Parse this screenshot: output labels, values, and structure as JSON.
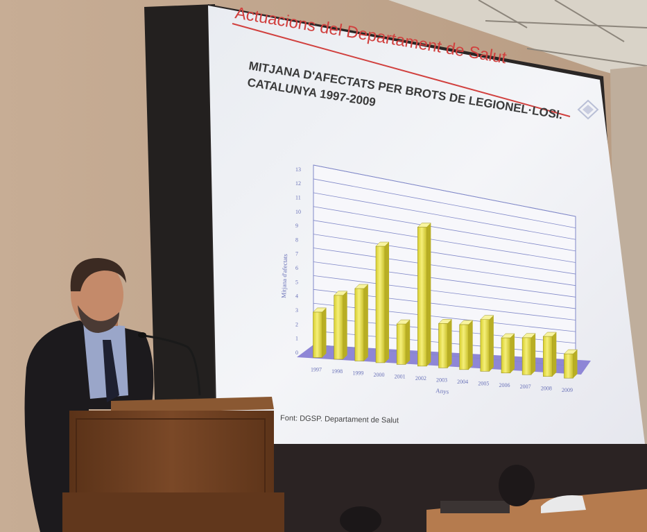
{
  "slide": {
    "header": "Actuacions del Departament de Salut",
    "title_line1": "MITJANA D'AFECTATS PER BROTS DE LEGIONEL·LOSI.",
    "title_line2": "CATALUNYA 1997-2009",
    "source": "Font: DGSP. Departament de Salut"
  },
  "colors": {
    "wall": "#c4ab92",
    "screen": "#f1f2f6",
    "accent_red": "#d1403e",
    "bar_yellow": "#e7e04a",
    "floor_purple": "#8e86d6",
    "podium_wood": "#6e3f22",
    "suit": "#1c1a1d"
  },
  "chart_data": {
    "type": "bar",
    "categories": [
      "1997",
      "1998",
      "1999",
      "2000",
      "2001",
      "2002",
      "2003",
      "2004",
      "2005",
      "2006",
      "2007",
      "2008",
      "2009"
    ],
    "values": [
      3.3,
      4.7,
      5.4,
      8.8,
      3.1,
      10.8,
      3.5,
      3.6,
      4.2,
      2.9,
      3.1,
      3.4,
      2.1
    ],
    "ylabel": "Mitjana d'afectats",
    "xlabel": "Anys",
    "yticks": [
      "0",
      "1",
      "2",
      "3",
      "4",
      "5",
      "6",
      "7",
      "8",
      "9",
      "10",
      "11",
      "12",
      "13"
    ],
    "ylim": [
      0,
      13
    ],
    "grid": true
  }
}
